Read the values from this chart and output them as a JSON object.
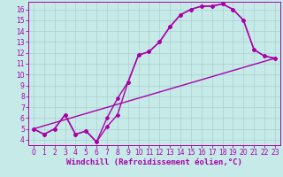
{
  "background_color": "#c5eae7",
  "line_color": "#aa00aa",
  "grid_color": "#aacfcf",
  "xlim": [
    -0.5,
    23.5
  ],
  "ylim": [
    3.5,
    16.7
  ],
  "xticks": [
    0,
    1,
    2,
    3,
    4,
    5,
    6,
    7,
    8,
    9,
    10,
    11,
    12,
    13,
    14,
    15,
    16,
    17,
    18,
    19,
    20,
    21,
    22,
    23
  ],
  "yticks": [
    4,
    5,
    6,
    7,
    8,
    9,
    10,
    11,
    12,
    13,
    14,
    15,
    16
  ],
  "line1_x": [
    0,
    1,
    2,
    3,
    4,
    5,
    6,
    7,
    8,
    9,
    10,
    11,
    12,
    13,
    14,
    15,
    16,
    17,
    18,
    19,
    20,
    21,
    22,
    23
  ],
  "line1_y": [
    5.0,
    4.5,
    5.0,
    6.3,
    4.5,
    4.8,
    3.8,
    6.0,
    7.8,
    9.3,
    11.8,
    12.1,
    13.0,
    14.4,
    15.5,
    16.0,
    16.3,
    16.3,
    16.5,
    16.0,
    15.0,
    12.3,
    11.7,
    11.5
  ],
  "line2_x": [
    0,
    1,
    2,
    3,
    4,
    5,
    6,
    7,
    8,
    9,
    10,
    11,
    12,
    13,
    14,
    15,
    16,
    17,
    18,
    19,
    20,
    21,
    22,
    23
  ],
  "line2_y": [
    5.0,
    4.5,
    5.0,
    6.3,
    4.5,
    4.8,
    3.8,
    5.2,
    6.3,
    9.3,
    11.8,
    12.1,
    13.0,
    14.4,
    15.5,
    16.0,
    16.3,
    16.3,
    16.5,
    16.0,
    15.0,
    12.3,
    11.7,
    11.5
  ],
  "line3_x": [
    0,
    23
  ],
  "line3_y": [
    5.0,
    11.5
  ],
  "xlabel": "Windchill (Refroidissement éolien,°C)",
  "marker": "D",
  "markersize": 2.0,
  "linewidth": 1.0,
  "tick_fontsize": 5.5,
  "xlabel_fontsize": 6.5
}
